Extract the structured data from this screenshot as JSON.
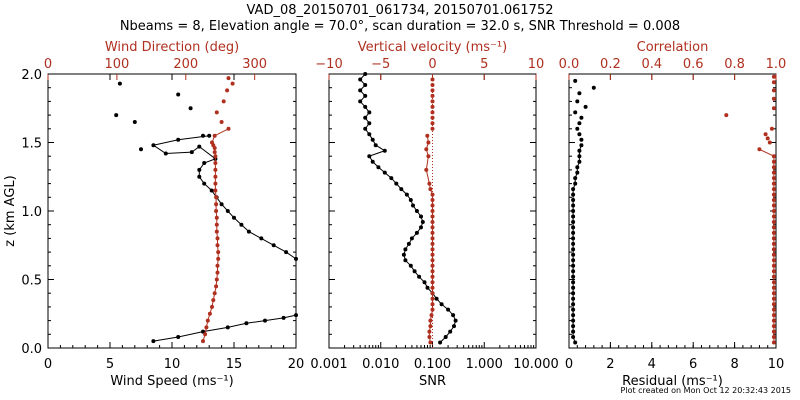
{
  "title": {
    "line1": "VAD_08_20150701_061734, 20150701.061752",
    "line2": "Nbeams = 8, Elevation angle = 70.0°, scan duration = 32.0 s, SNR Threshold = 0.008"
  },
  "footer": "Plot created on Mon Oct 12 20:32:43 2015",
  "colors": {
    "black": "#000000",
    "red": "#b03020"
  },
  "chart_data": [
    {
      "type": "line",
      "title": "",
      "ylabel": "z (km AGL)",
      "ylim": [
        0,
        2.0
      ],
      "yticks": [
        "0.0",
        "0.5",
        "1.0",
        "1.5",
        "2.0"
      ],
      "xlabel": "Wind Speed (ms⁻¹)",
      "xlim": [
        0,
        20
      ],
      "xticks": [
        "0",
        "5",
        "10",
        "15",
        "20"
      ],
      "x2label": "Wind Direction (deg)",
      "x2lim": [
        0,
        360
      ],
      "x2ticks": [
        "0",
        "100",
        "200",
        "300"
      ],
      "series": [
        {
          "color": "black",
          "axis": "x",
          "lines": true,
          "x": [
            8.5,
            10.5,
            12.5,
            14.5,
            16,
            17.5,
            19,
            20
          ],
          "y": [
            0.05,
            0.08,
            0.12,
            0.15,
            0.18,
            0.2,
            0.22,
            0.24
          ]
        },
        {
          "color": "black",
          "axis": "x",
          "lines": true,
          "x": [
            20,
            19.2,
            18.2,
            17.2,
            16.2,
            15.6,
            15.0,
            14.5,
            14.0,
            13.6,
            13.2,
            12.6,
            12.2,
            12.2,
            12.6,
            13.5,
            12.2,
            11.6,
            9.5,
            8.5,
            10.5,
            13
          ],
          "y": [
            0.65,
            0.7,
            0.75,
            0.8,
            0.85,
            0.9,
            0.95,
            1.0,
            1.05,
            1.1,
            1.15,
            1.2,
            1.25,
            1.3,
            1.35,
            1.38,
            1.47,
            1.43,
            1.42,
            1.48,
            1.52,
            1.55
          ]
        },
        {
          "color": "black",
          "axis": "x",
          "lines": false,
          "x": [
            7.5,
            7.0,
            5.5,
            12.5,
            11.5,
            10.5,
            5.8
          ],
          "y": [
            1.45,
            1.65,
            1.7,
            1.55,
            1.75,
            1.85,
            1.93
          ]
        },
        {
          "color": "red",
          "axis": "x2",
          "lines": true,
          "x": [
            225,
            228,
            230,
            232,
            235,
            238,
            240,
            242,
            244,
            245,
            246,
            246,
            247,
            247,
            246,
            246,
            245,
            245,
            245,
            244,
            244,
            244,
            243,
            243,
            243,
            243,
            243,
            243,
            242,
            242,
            240,
            238,
            242,
            262
          ],
          "y": [
            0.05,
            0.1,
            0.15,
            0.2,
            0.25,
            0.3,
            0.35,
            0.4,
            0.45,
            0.5,
            0.55,
            0.6,
            0.65,
            0.7,
            0.75,
            0.8,
            0.85,
            0.9,
            0.95,
            1.0,
            1.05,
            1.1,
            1.15,
            1.2,
            1.25,
            1.3,
            1.35,
            1.4,
            1.43,
            1.46,
            1.48,
            1.5,
            1.55,
            1.6
          ]
        },
        {
          "color": "red",
          "axis": "x2",
          "lines": false,
          "x": [
            252,
            245,
            255,
            260,
            268,
            262
          ],
          "y": [
            1.65,
            1.72,
            1.8,
            1.88,
            1.93,
            1.97
          ]
        }
      ]
    },
    {
      "type": "line",
      "title": "",
      "xlabel": "SNR",
      "xscale": "log",
      "xlim": [
        0.001,
        10
      ],
      "xticks": [
        "0.001",
        "0.010",
        "0.100",
        "1.000",
        "10.000"
      ],
      "x2label": "Vertical velocity (ms⁻¹)",
      "x2lim": [
        -10,
        10
      ],
      "x2ticks": [
        "−10",
        "−5",
        "0",
        "5",
        "10"
      ],
      "ylim": [
        0,
        2.0
      ],
      "series": [
        {
          "color": "black",
          "axis": "x",
          "lines": true,
          "x": [
            0.14,
            0.18,
            0.22,
            0.26,
            0.28,
            0.25,
            0.2,
            0.15,
            0.12,
            0.1,
            0.08,
            0.07,
            0.055,
            0.045,
            0.038,
            0.03,
            0.028,
            0.03,
            0.035,
            0.04,
            0.05,
            0.06,
            0.065,
            0.06,
            0.05,
            0.042,
            0.038,
            0.032,
            0.025,
            0.02,
            0.016,
            0.012,
            0.009,
            0.007,
            0.006,
            0.012,
            0.008,
            0.007,
            0.006,
            0.005,
            0.006,
            0.005,
            0.006,
            0.005,
            0.004,
            0.005,
            0.004,
            0.005,
            0.004,
            0.005
          ],
          "y": [
            0.04,
            0.08,
            0.12,
            0.16,
            0.2,
            0.24,
            0.28,
            0.32,
            0.36,
            0.4,
            0.44,
            0.48,
            0.52,
            0.56,
            0.6,
            0.64,
            0.68,
            0.72,
            0.76,
            0.8,
            0.84,
            0.88,
            0.92,
            0.96,
            1.0,
            1.04,
            1.08,
            1.12,
            1.16,
            1.2,
            1.24,
            1.28,
            1.32,
            1.36,
            1.4,
            1.44,
            1.48,
            1.52,
            1.56,
            1.6,
            1.64,
            1.68,
            1.72,
            1.76,
            1.8,
            1.84,
            1.88,
            1.92,
            1.96,
            2.0
          ]
        },
        {
          "color": "red",
          "axis": "x2",
          "lines": true,
          "x": [
            -0.2,
            -0.3,
            -0.3,
            -0.2,
            -0.2,
            -0.1,
            0,
            0,
            0,
            0,
            0,
            0,
            0,
            0,
            0,
            0,
            0,
            0,
            0,
            0,
            0,
            0,
            0,
            0,
            0,
            0,
            0,
            0,
            -0.2,
            -0.3,
            -0.6,
            -0.4,
            -0.6,
            -0.4,
            -0.5
          ],
          "y": [
            0.04,
            0.08,
            0.12,
            0.16,
            0.2,
            0.24,
            0.28,
            0.32,
            0.36,
            0.4,
            0.44,
            0.48,
            0.52,
            0.56,
            0.6,
            0.64,
            0.68,
            0.72,
            0.76,
            0.8,
            0.84,
            0.88,
            0.92,
            0.96,
            1.0,
            1.04,
            1.08,
            1.12,
            1.16,
            1.2,
            1.3,
            1.4,
            1.45,
            1.5,
            1.55
          ]
        },
        {
          "color": "red",
          "axis": "x2",
          "lines": false,
          "x": [
            0,
            0,
            0,
            0,
            0,
            0,
            0,
            0,
            0,
            0
          ],
          "y": [
            1.6,
            1.64,
            1.68,
            1.72,
            1.76,
            1.8,
            1.84,
            1.88,
            1.92,
            1.96
          ]
        }
      ]
    },
    {
      "type": "scatter",
      "title": "",
      "xlabel": "Residual (ms⁻¹)",
      "xlim": [
        0,
        10
      ],
      "xticks": [
        "0",
        "2",
        "4",
        "6",
        "8",
        "10"
      ],
      "x2label": "Correlation",
      "x2lim": [
        0,
        1.0
      ],
      "x2ticks": [
        "0.0",
        "0.2",
        "0.4",
        "0.6",
        "0.8",
        "1.0"
      ],
      "ylim": [
        0,
        2.0
      ],
      "series": [
        {
          "color": "black",
          "axis": "x",
          "lines": true,
          "x": [
            0.3,
            0.2,
            0.2,
            0.2,
            0.2,
            0.2,
            0.2,
            0.2,
            0.2,
            0.2,
            0.2,
            0.2,
            0.2,
            0.2,
            0.2,
            0.2,
            0.2,
            0.2,
            0.2,
            0.2,
            0.2,
            0.2,
            0.2,
            0.2,
            0.2,
            0.2,
            0.2,
            0.2,
            0.2,
            0.3,
            0.3,
            0.4,
            0.4,
            0.5,
            0.5,
            0.5,
            0.6
          ],
          "y": [
            0.04,
            0.08,
            0.12,
            0.16,
            0.2,
            0.24,
            0.28,
            0.32,
            0.36,
            0.4,
            0.44,
            0.48,
            0.52,
            0.56,
            0.6,
            0.64,
            0.68,
            0.72,
            0.76,
            0.8,
            0.84,
            0.88,
            0.92,
            0.96,
            1.0,
            1.04,
            1.08,
            1.12,
            1.16,
            1.2,
            1.24,
            1.28,
            1.32,
            1.36,
            1.4,
            1.44,
            1.48
          ]
        },
        {
          "color": "black",
          "axis": "x",
          "lines": false,
          "x": [
            0.6,
            0.5,
            0.4,
            0.5,
            0.6,
            0.3,
            0.8,
            0.4,
            0.5,
            1.2,
            0.3
          ],
          "y": [
            1.52,
            1.56,
            1.6,
            1.64,
            1.68,
            1.72,
            1.76,
            1.8,
            1.86,
            1.9,
            1.95
          ]
        },
        {
          "color": "red",
          "axis": "x2",
          "lines": true,
          "x": [
            0.99,
            0.99,
            0.99,
            0.99,
            0.99,
            0.99,
            0.99,
            0.99,
            0.99,
            0.99,
            0.99,
            0.99,
            0.99,
            0.99,
            0.99,
            0.99,
            0.99,
            0.99,
            0.99,
            0.99,
            0.99,
            0.99,
            0.99,
            0.99,
            0.99,
            0.99,
            0.99,
            0.99,
            0.99,
            0.99,
            0.99,
            0.99,
            0.99,
            0.99,
            0.99,
            0.92
          ],
          "y": [
            0.04,
            0.08,
            0.12,
            0.16,
            0.2,
            0.24,
            0.28,
            0.32,
            0.36,
            0.4,
            0.44,
            0.48,
            0.52,
            0.56,
            0.6,
            0.64,
            0.68,
            0.72,
            0.76,
            0.8,
            0.84,
            0.88,
            0.92,
            0.96,
            1.0,
            1.04,
            1.08,
            1.12,
            1.16,
            1.2,
            1.24,
            1.28,
            1.32,
            1.36,
            1.4,
            1.45
          ]
        },
        {
          "color": "red",
          "axis": "x2",
          "lines": false,
          "x": [
            0.97,
            0.96,
            0.95,
            0.98,
            0.76,
            0.99,
            0.99,
            0.99,
            0.99,
            0.99
          ],
          "y": [
            1.5,
            1.53,
            1.56,
            1.6,
            1.7,
            1.75,
            1.82,
            1.88,
            1.94,
            1.98
          ]
        }
      ]
    }
  ]
}
